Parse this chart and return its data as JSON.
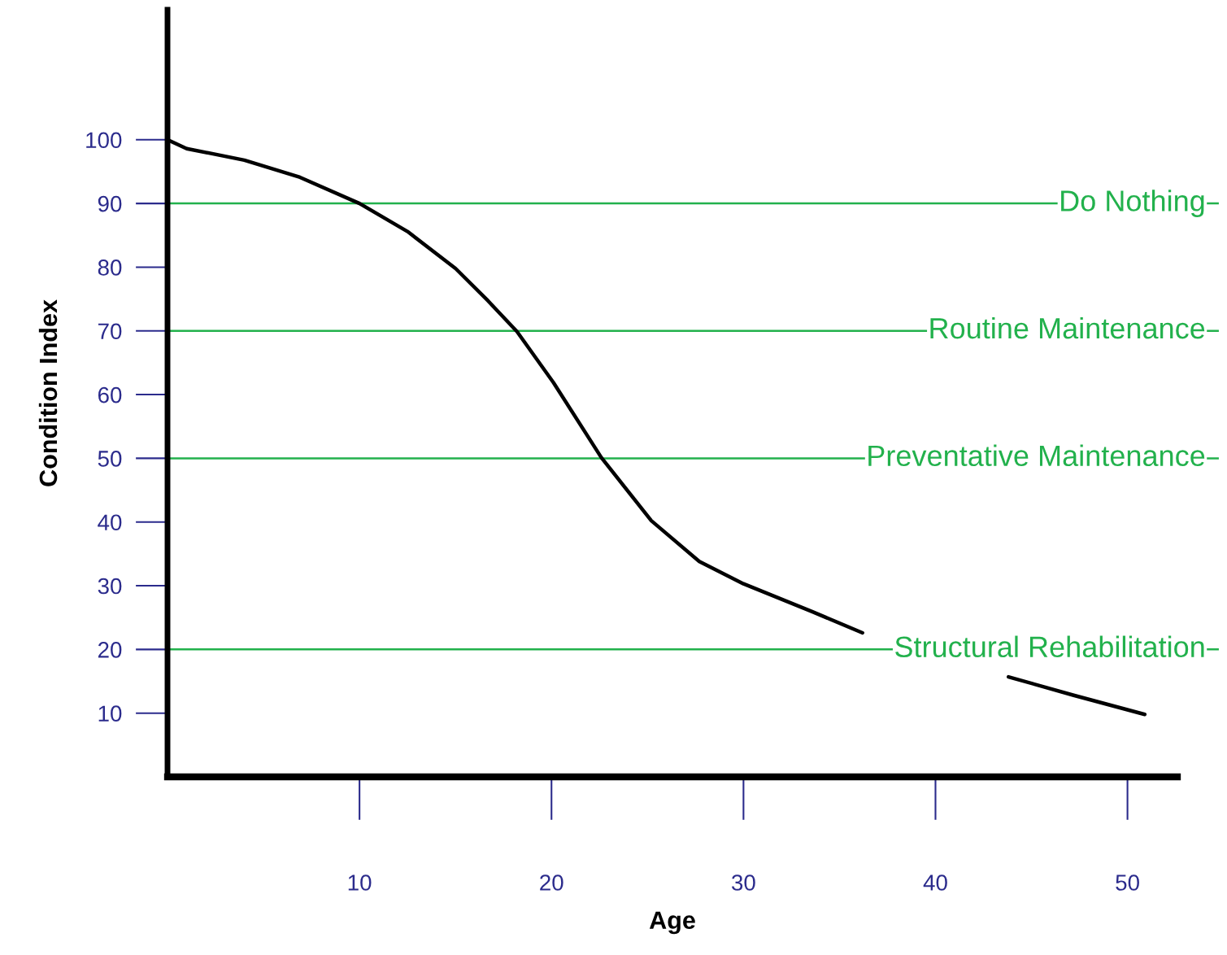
{
  "chart_data": {
    "type": "line",
    "xlabel": "Age",
    "ylabel": "Condition Index",
    "x": [
      0,
      1.0,
      4.0,
      6.9,
      10,
      12.5,
      15,
      16.7,
      18.2,
      20.1,
      22.6,
      25.2,
      27.7,
      30,
      33.6,
      36.2,
      40,
      43.8,
      47.2,
      50.9
    ],
    "series": [
      {
        "color": "#000000",
        "values": [
          100,
          98.6,
          96.8,
          94.1,
          90,
          85.6,
          79.8,
          74.7,
          69.9,
          61.9,
          50.1,
          40.2,
          33.8,
          30.3,
          25.9,
          22.6,
          null,
          15.7,
          12.8,
          9.8
        ]
      }
    ],
    "xlim": [
      0,
      52.6
    ],
    "ylim": [
      0,
      120.4
    ],
    "xticks": [
      10,
      20,
      30,
      40,
      50
    ],
    "yticks": [
      10,
      20,
      30,
      40,
      50,
      60,
      70,
      80,
      90,
      100
    ],
    "ref_lines": [
      {
        "axis": "y",
        "value": 90,
        "label": "Do Nothing",
        "color": "#22b14c"
      },
      {
        "axis": "y",
        "value": 70,
        "label": "Routine Maintenance",
        "color": "#22b14c"
      },
      {
        "axis": "y",
        "value": 50,
        "label": "Preventative Maintenance",
        "color": "#22b14c"
      },
      {
        "axis": "y",
        "value": 20,
        "label": "Structural Rehabilitation",
        "color": "#22b14c"
      }
    ],
    "grid": false,
    "marker": "none",
    "line_style": "solid"
  }
}
